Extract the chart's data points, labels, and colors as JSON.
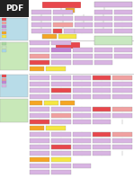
{
  "bg_color": "#ffffff",
  "pdf_bg": "#222222",
  "pdf_fg": "#ffffff",
  "colors": {
    "red": "#e8474c",
    "light_purple": "#d8b4e2",
    "purple": "#c084d4",
    "salmon": "#f0a0a0",
    "orange": "#f5a623",
    "yellow": "#f5e642",
    "green": "#a8d8a0",
    "light_green": "#c8e8c0",
    "cyan": "#a8d8e8",
    "light_cyan": "#c8eef8",
    "gray": "#c0c0c0",
    "white": "#ffffff",
    "border": "#aaaaaa"
  },
  "legend_top_color": "#b8dce8",
  "legend_bot_color": "#c8e8b8"
}
